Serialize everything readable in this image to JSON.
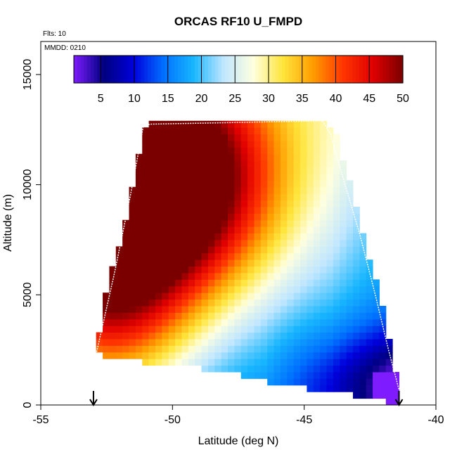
{
  "chart_data": {
    "type": "heatmap",
    "title": "ORCAS RF10 U_FMPD",
    "annotations": [
      "Flts: 10",
      "MMDD: 0210"
    ],
    "xlabel": "Latitude (deg N)",
    "ylabel": "Altitude (m)",
    "xlim": [
      -55,
      -40
    ],
    "ylim": [
      0,
      16500
    ],
    "xticks": [
      -55,
      -50,
      -45,
      -40
    ],
    "xtick_labels": [
      "-55",
      "-50",
      "-45",
      "-40"
    ],
    "yticks": [
      0,
      5000,
      10000,
      15000
    ],
    "ytick_labels": [
      "0",
      "5000",
      "10000",
      "15000"
    ],
    "colorbar": {
      "range": [
        1,
        50
      ],
      "ticks": [
        5,
        10,
        15,
        20,
        25,
        30,
        35,
        40,
        45,
        50
      ],
      "tick_labels": [
        "5",
        "10",
        "15",
        "20",
        "25",
        "30",
        "35",
        "40",
        "45",
        "50"
      ],
      "colors": [
        "#7e1cff",
        "#00007f",
        "#0000dd",
        "#0070ff",
        "#18b6ff",
        "#bfe6ff",
        "#ffffdf",
        "#ffe53b",
        "#ff9c00",
        "#ff3500",
        "#e00000",
        "#7a0000"
      ]
    },
    "field": {
      "lat_range": [
        -52.9,
        -41.3
      ],
      "alt_range": [
        0,
        13000
      ],
      "cell_lat": 0.25,
      "cell_alt": 300,
      "top_boundary": [
        [
          -52.8,
          12800
        ],
        [
          -50.8,
          12900
        ],
        [
          -44.2,
          12950
        ]
      ],
      "bottom_boundary": [
        [
          -52.9,
          2300
        ],
        [
          -51.5,
          2000
        ],
        [
          -50,
          1800
        ],
        [
          -48,
          1500
        ],
        [
          -46,
          900
        ],
        [
          -44,
          600
        ],
        [
          -42.5,
          300
        ],
        [
          -41.4,
          0
        ]
      ],
      "left_boundary": [
        [
          -52.9,
          2300
        ],
        [
          -52.5,
          5300
        ],
        [
          -52,
          7300
        ],
        [
          -51.5,
          10000
        ],
        [
          -51.2,
          12000
        ],
        [
          -51,
          12800
        ]
      ],
      "right_boundary": [
        [
          -44.2,
          12950
        ],
        [
          -43.8,
          12300
        ],
        [
          -43,
          9000
        ],
        [
          -42.5,
          6500
        ],
        [
          -42,
          4500
        ],
        [
          -41.3,
          0
        ]
      ]
    },
    "flight_track": [
      [
        -52.9,
        2300
      ],
      [
        -52.2,
        6000
      ],
      [
        -51.6,
        9500
      ],
      [
        -51.1,
        12700
      ],
      [
        -50.8,
        12750
      ],
      [
        -44.3,
        12900
      ],
      [
        -44.0,
        12300
      ],
      [
        -43.5,
        10200
      ],
      [
        -42.9,
        7800
      ],
      [
        -42.3,
        5000
      ],
      [
        -41.8,
        2500
      ],
      [
        -41.4,
        700
      ]
    ],
    "markers": [
      {
        "lat": -53.0,
        "label": "arrow"
      },
      {
        "lat": -41.4,
        "label": "arrow"
      }
    ]
  }
}
